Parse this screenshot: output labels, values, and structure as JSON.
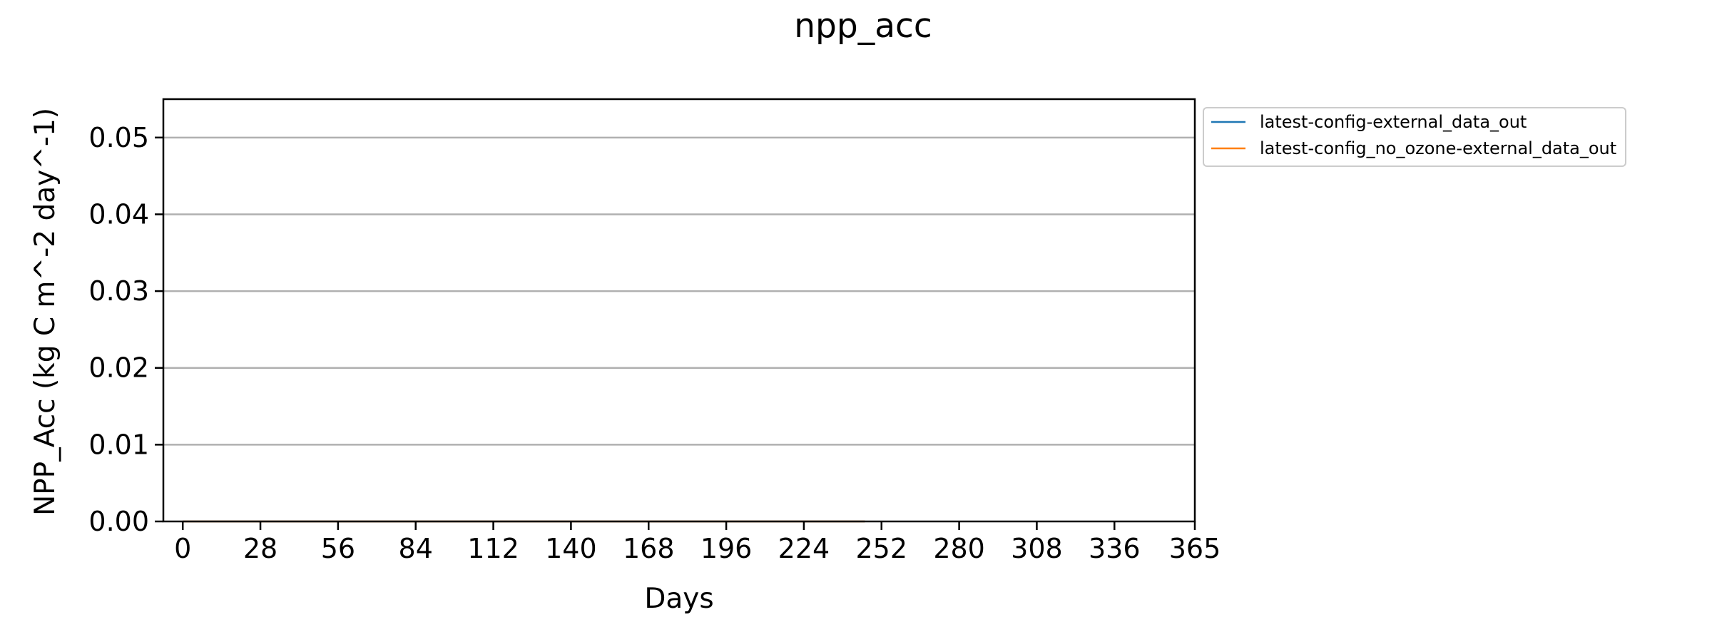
{
  "chart_data": {
    "type": "line",
    "title": "npp_acc",
    "xlabel": "Days",
    "ylabel": "NPP_Acc (kg C m^-2 day^-1)",
    "xlim": [
      -7,
      365
    ],
    "ylim": [
      0,
      0.055
    ],
    "xticks": [
      0,
      28,
      56,
      84,
      112,
      140,
      168,
      196,
      224,
      252,
      280,
      308,
      336,
      365
    ],
    "xtick_labels": [
      "0",
      "28",
      "56",
      "84",
      "112",
      "140",
      "168",
      "196",
      "224",
      "252",
      "280",
      "308",
      "336",
      "365"
    ],
    "yticks": [
      0.0,
      0.01,
      0.02,
      0.03,
      0.04,
      0.05
    ],
    "ytick_labels": [
      "0.00",
      "0.01",
      "0.02",
      "0.03",
      "0.04",
      "0.05"
    ],
    "grid": "y-major",
    "legend_position": "outside-top-right",
    "series": [
      {
        "name": "latest-config-external_data_out",
        "color": "#1f77b4",
        "x": [
          0,
          28,
          56,
          84,
          112,
          140,
          168,
          196,
          224,
          246
        ],
        "y": [
          0,
          0,
          0,
          0,
          0,
          0,
          0,
          0,
          0,
          0
        ]
      },
      {
        "name": "latest-config_no_ozone-external_data_out",
        "color": "#ff7f0e",
        "x": [
          0,
          28,
          56,
          84,
          112,
          140,
          168,
          196,
          224,
          246
        ],
        "y": [
          0,
          0,
          0,
          0,
          0,
          0,
          0,
          0,
          0,
          0
        ]
      }
    ]
  }
}
